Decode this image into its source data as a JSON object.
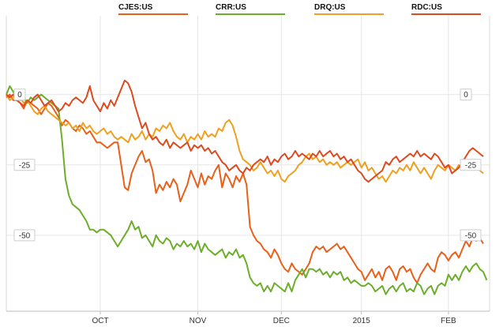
{
  "chart_data": {
    "type": "line",
    "x_ticks": [
      "OCT",
      "NOV",
      "DEC",
      "2015",
      "FEB"
    ],
    "y_ticks": [
      0,
      -25,
      -50
    ],
    "ylim": [
      -77,
      28
    ],
    "grid": true,
    "legend_position": "top",
    "series": [
      {
        "name": "CJES:US",
        "color": "#e8601a",
        "values": [
          -1,
          0,
          -2,
          -2,
          -3,
          -5,
          -2,
          -3,
          -4,
          -5,
          -7,
          -5,
          -3,
          -4,
          -6,
          -8,
          -11,
          -9,
          -10,
          -12,
          -13,
          -11,
          -12,
          -14,
          -13,
          -15,
          -17,
          -17,
          -18,
          -19,
          -18,
          -17,
          -17,
          -25,
          -33,
          -34,
          -28,
          -25,
          -22,
          -20,
          -24,
          -23,
          -27,
          -35,
          -32,
          -34,
          -31,
          -33,
          -30,
          -32,
          -38,
          -35,
          -32,
          -27,
          -30,
          -33,
          -28,
          -32,
          -29,
          -30,
          -27,
          -25,
          -33,
          -28,
          -30,
          -33,
          -29,
          -31,
          -28,
          -32,
          -47,
          -50,
          -52,
          -53,
          -55,
          -56,
          -58,
          -55,
          -57,
          -60,
          -62,
          -63,
          -60,
          -62,
          -63,
          -64,
          -62,
          -60,
          -56,
          -54,
          -55,
          -54,
          -56,
          -55,
          -54,
          -53,
          -55,
          -54,
          -56,
          -58,
          -60,
          -62,
          -63,
          -66,
          -64,
          -62,
          -65,
          -63,
          -66,
          -62,
          -61,
          -63,
          -66,
          -62,
          -61,
          -63,
          -62,
          -65,
          -67,
          -64,
          -62,
          -60,
          -62,
          -63,
          -58,
          -56,
          -57,
          -59,
          -57,
          -56,
          -58,
          -55,
          -52,
          -54,
          -51,
          -52,
          -51,
          -53
        ]
      },
      {
        "name": "CRR:US",
        "color": "#6cae2a",
        "values": [
          0,
          3,
          1,
          -1,
          -2,
          -1,
          -3,
          -1,
          -2,
          -1,
          0,
          -1,
          -2,
          -3,
          -4,
          -5,
          -16,
          -30,
          -36,
          -39,
          -40,
          -41,
          -43,
          -45,
          -48,
          -48,
          -49,
          -48,
          -48,
          -49,
          -50,
          -52,
          -54,
          -52,
          -50,
          -48,
          -45,
          -48,
          -47,
          -51,
          -50,
          -52,
          -54,
          -50,
          -52,
          -53,
          -51,
          -52,
          -55,
          -53,
          -54,
          -52,
          -54,
          -53,
          -55,
          -52,
          -56,
          -53,
          -55,
          -56,
          -57,
          -56,
          -55,
          -58,
          -56,
          -57,
          -55,
          -58,
          -57,
          -60,
          -65,
          -67,
          -68,
          -67,
          -70,
          -68,
          -70,
          -67,
          -68,
          -69,
          -70,
          -67,
          -70,
          -66,
          -64,
          -62,
          -65,
          -62,
          -62,
          -63,
          -62,
          -64,
          -63,
          -65,
          -63,
          -64,
          -63,
          -66,
          -65,
          -67,
          -66,
          -67,
          -68,
          -68,
          -67,
          -68,
          -70,
          -69,
          -68,
          -71,
          -69,
          -68,
          -70,
          -68,
          -67,
          -70,
          -69,
          -70,
          -67,
          -68,
          -71,
          -69,
          -68,
          -71,
          -68,
          -67,
          -68,
          -64,
          -66,
          -64,
          -66,
          -63,
          -61,
          -63,
          -61,
          -60,
          -62,
          -63,
          -66
        ]
      },
      {
        "name": "DRQ:US",
        "color": "#f0a020",
        "values": [
          0,
          -2,
          -1,
          0,
          -1,
          -3,
          -2,
          -4,
          -6,
          -7,
          -5,
          -4,
          -6,
          -7,
          -8,
          -9,
          -10,
          -11,
          -10,
          -12,
          -11,
          -13,
          -10,
          -12,
          -11,
          -13,
          -14,
          -13,
          -12,
          -14,
          -13,
          -15,
          -16,
          -15,
          -16,
          -17,
          -14,
          -16,
          -15,
          -13,
          -16,
          -14,
          -15,
          -12,
          -13,
          -11,
          -12,
          -10,
          -13,
          -15,
          -16,
          -14,
          -17,
          -15,
          -16,
          -14,
          -16,
          -13,
          -15,
          -14,
          -15,
          -12,
          -13,
          -10,
          -9,
          -11,
          -15,
          -20,
          -23,
          -24,
          -25,
          -27,
          -26,
          -24,
          -26,
          -28,
          -27,
          -29,
          -27,
          -30,
          -31,
          -29,
          -28,
          -27,
          -25,
          -24,
          -22,
          -21,
          -23,
          -22,
          -24,
          -23,
          -25,
          -24,
          -25,
          -24,
          -26,
          -25,
          -24,
          -25,
          -24,
          -23,
          -26,
          -24,
          -27,
          -26,
          -28,
          -30,
          -29,
          -31,
          -29,
          -27,
          -28,
          -26,
          -27,
          -25,
          -27,
          -24,
          -26,
          -28,
          -26,
          -28,
          -30,
          -27,
          -25,
          -26,
          -27,
          -25,
          -26,
          -27,
          -25,
          -26,
          -24,
          -25,
          -26,
          -25,
          -27,
          -28
        ]
      },
      {
        "name": "RDC:US",
        "color": "#dd4a1e",
        "values": [
          0,
          -1,
          0,
          -2,
          -3,
          -4,
          -2,
          -3,
          -1,
          0,
          -2,
          -4,
          -3,
          -2,
          -4,
          -6,
          -5,
          -3,
          -4,
          -2,
          -1,
          -2,
          -3,
          -1,
          3,
          -2,
          -4,
          -6,
          -3,
          -5,
          -2,
          -4,
          -1,
          2,
          5,
          4,
          1,
          -4,
          -8,
          -12,
          -10,
          -14,
          -16,
          -15,
          -17,
          -18,
          -16,
          -19,
          -17,
          -18,
          -19,
          -18,
          -17,
          -20,
          -18,
          -19,
          -18,
          -20,
          -19,
          -21,
          -20,
          -22,
          -24,
          -25,
          -27,
          -26,
          -25,
          -27,
          -28,
          -26,
          -27,
          -25,
          -24,
          -23,
          -24,
          -22,
          -25,
          -23,
          -24,
          -22,
          -21,
          -23,
          -22,
          -20,
          -22,
          -21,
          -22,
          -23,
          -21,
          -22,
          -20,
          -22,
          -21,
          -20,
          -22,
          -21,
          -23,
          -22,
          -24,
          -23,
          -25,
          -27,
          -28,
          -30,
          -31,
          -30,
          -29,
          -28,
          -27,
          -24,
          -25,
          -23,
          -22,
          -24,
          -23,
          -22,
          -21,
          -22,
          -20,
          -22,
          -21,
          -22,
          -23,
          -21,
          -22,
          -24,
          -26,
          -25,
          -28,
          -27,
          -26,
          -24,
          -22,
          -20,
          -19,
          -20,
          -21,
          -22
        ]
      }
    ]
  }
}
